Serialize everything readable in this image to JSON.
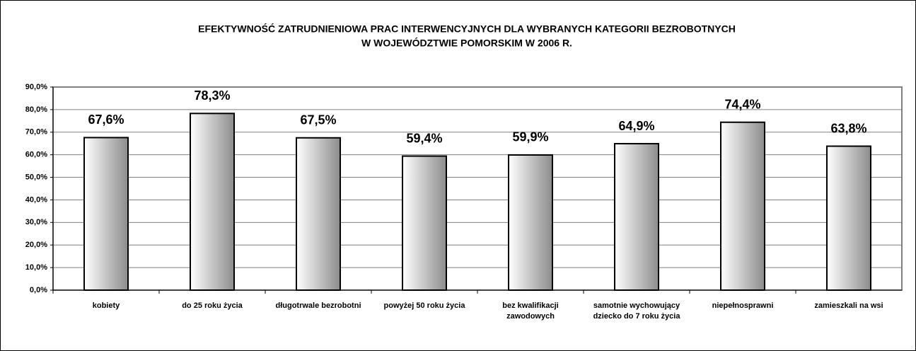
{
  "chart_data": {
    "type": "bar",
    "title": [
      "EFEKTYWNOŚĆ ZATRUDNIENIOWA PRAC INTERWENCYJNYCH DLA WYBRANYCH KATEGORII BEZROBOTNYCH",
      "W WOJEWÓDZTWIE POMORSKIM W 2006 R."
    ],
    "categories": [
      "kobiety",
      "do 25 roku życia",
      "długotrwale bezrobotni",
      "powyżej 50 roku życia",
      "bez kwalifikacji zawodowych",
      "samotnie wychowujący dziecko do 7 roku życia",
      "niepełnosprawni",
      "zamieszkali na wsi"
    ],
    "values": [
      67.6,
      78.3,
      67.5,
      59.4,
      59.9,
      64.9,
      74.4,
      63.8
    ],
    "value_labels": [
      "67,6%",
      "78,3%",
      "67,5%",
      "59,4%",
      "59,9%",
      "64,9%",
      "74,4%",
      "63,8%"
    ],
    "color": "#c0c0c0",
    "ylim": [
      0,
      90
    ],
    "yticks": [
      {
        "value": 0,
        "label": "0,0%"
      },
      {
        "value": 10,
        "label": "10,0%"
      },
      {
        "value": 20,
        "label": "20,0%"
      },
      {
        "value": 30,
        "label": "30,0%"
      },
      {
        "value": 40,
        "label": "40,0%"
      },
      {
        "value": 50,
        "label": "50,0%"
      },
      {
        "value": 60,
        "label": "60,0%"
      },
      {
        "value": 70,
        "label": "70,0%"
      },
      {
        "value": 80,
        "label": "80,0%"
      },
      {
        "value": 90,
        "label": "90,0%"
      }
    ],
    "grid": true
  }
}
